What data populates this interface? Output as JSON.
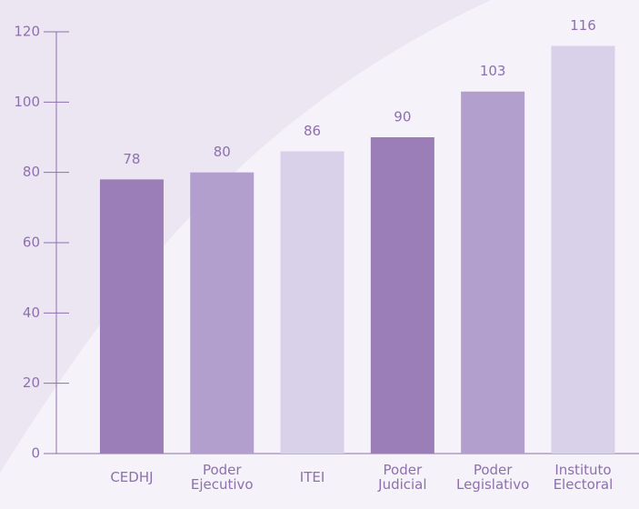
{
  "chart_data": {
    "type": "bar",
    "categories": [
      "CEDHJ",
      "Poder Ejecutivo",
      "ITEI",
      "Poder Judicial",
      "Poder Legislativo",
      "Instituto Electoral"
    ],
    "values": [
      78,
      80,
      86,
      90,
      103,
      116
    ],
    "colors": [
      "#9b7db8",
      "#b39fcd",
      "#d9d0e9",
      "#9b7db8",
      "#b39fcd",
      "#d9d0e9"
    ],
    "ylim": [
      0,
      120
    ],
    "yticks": [
      0,
      20,
      40,
      60,
      80,
      100,
      120
    ],
    "grid": false
  }
}
